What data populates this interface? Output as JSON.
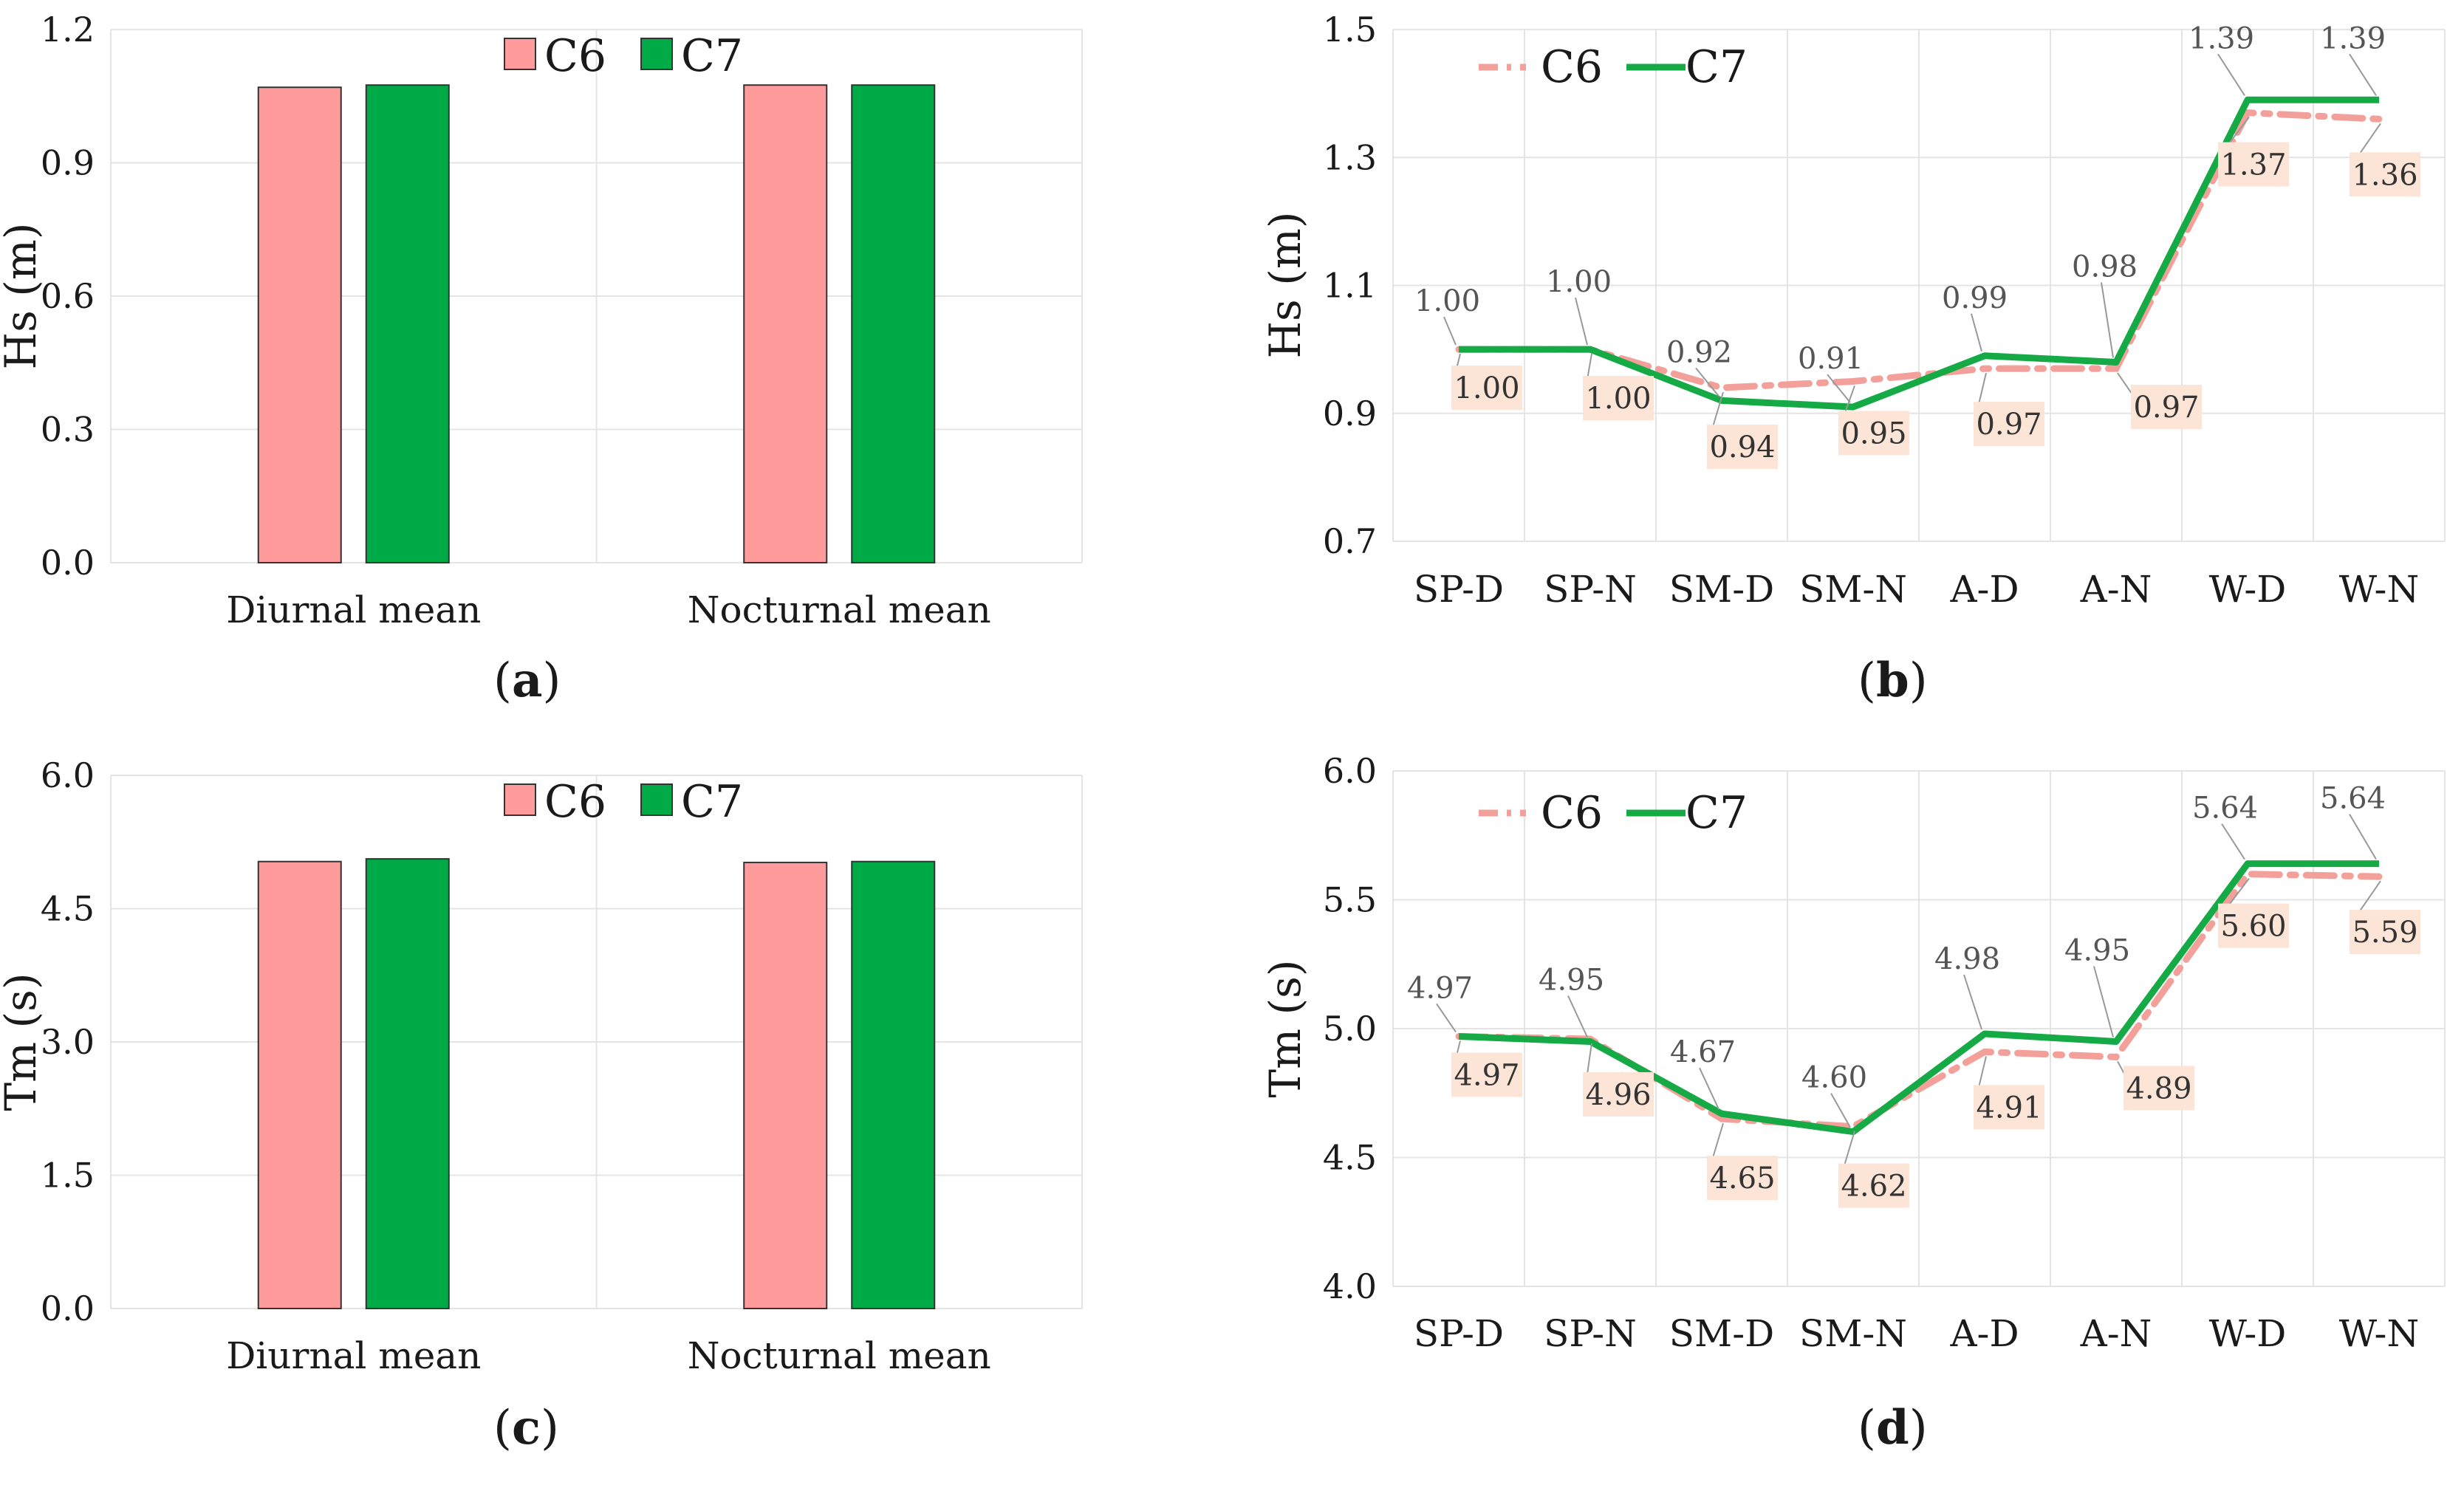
{
  "colors": {
    "c6_bar": "#FF9B9B",
    "c7_bar": "#00AA47",
    "c6_line": "#F4A09A",
    "c7_line": "#15AA45",
    "c6_label_bg": "#FCE4D6",
    "grid": "#E4E4E4"
  },
  "chart_data": [
    {
      "id": "a",
      "type": "bar",
      "panel_label": "(a)",
      "panel_letter": "a",
      "categories": [
        "Diurnal mean",
        "Nocturnal mean"
      ],
      "series": [
        {
          "name": "C6",
          "values": [
            1.07,
            1.075
          ]
        },
        {
          "name": "C7",
          "values": [
            1.075,
            1.075
          ]
        }
      ],
      "ylabel": "Hs (m)",
      "xlabel": "",
      "ylim": [
        0,
        1.2
      ],
      "yticks": [
        "0.0",
        "0.3",
        "0.6",
        "0.9",
        "1.2"
      ],
      "legend": "top-center",
      "grid": true
    },
    {
      "id": "b",
      "type": "line",
      "panel_label": "(b)",
      "panel_letter": "b",
      "categories": [
        "SP-D",
        "SP-N",
        "SM-D",
        "SM-N",
        "A-D",
        "A-N",
        "W-D",
        "W-N"
      ],
      "series": [
        {
          "name": "C6",
          "values": [
            1.0,
            1.0,
            0.94,
            0.95,
            0.97,
            0.97,
            1.37,
            1.36
          ],
          "labels": [
            "1.00",
            "1.00",
            "0.94",
            "0.95",
            "0.97",
            "0.97",
            "1.37",
            "1.36"
          ]
        },
        {
          "name": "C7",
          "values": [
            1.0,
            1.0,
            0.92,
            0.91,
            0.99,
            0.98,
            1.39,
            1.39
          ],
          "labels": [
            "1.00",
            "1.00",
            "0.92",
            "0.91",
            "0.99",
            "0.98",
            "1.39",
            "1.39"
          ]
        }
      ],
      "ylabel": "Hs (m)",
      "xlabel": "",
      "ylim": [
        0.7,
        1.5
      ],
      "yticks": [
        "0.7",
        "0.9",
        "1.1",
        "1.3",
        "1.5"
      ],
      "legend": "top-left",
      "grid": true
    },
    {
      "id": "c",
      "type": "bar",
      "panel_label": "(c)",
      "panel_letter": "c",
      "categories": [
        "Diurnal mean",
        "Nocturnal mean"
      ],
      "series": [
        {
          "name": "C6",
          "values": [
            5.03,
            5.02
          ]
        },
        {
          "name": "C7",
          "values": [
            5.06,
            5.03
          ]
        }
      ],
      "ylabel": "Tm (s)",
      "xlabel": "",
      "ylim": [
        0,
        6.0
      ],
      "yticks": [
        "0.0",
        "1.5",
        "3.0",
        "4.5",
        "6.0"
      ],
      "legend": "top-center",
      "grid": true
    },
    {
      "id": "d",
      "type": "line",
      "panel_label": "(d)",
      "panel_letter": "d",
      "categories": [
        "SP-D",
        "SP-N",
        "SM-D",
        "SM-N",
        "A-D",
        "A-N",
        "W-D",
        "W-N"
      ],
      "series": [
        {
          "name": "C6",
          "values": [
            4.97,
            4.96,
            4.65,
            4.62,
            4.91,
            4.89,
            5.6,
            5.59
          ],
          "labels": [
            "4.97",
            "4.96",
            "4.65",
            "4.62",
            "4.91",
            "4.89",
            "5.60",
            "5.59"
          ]
        },
        {
          "name": "C7",
          "values": [
            4.97,
            4.95,
            4.67,
            4.6,
            4.98,
            4.95,
            5.64,
            5.64
          ],
          "labels": [
            "4.97",
            "4.95",
            "4.67",
            "4.60",
            "4.98",
            "4.95",
            "5.64",
            "5.64"
          ]
        }
      ],
      "ylabel": "Tm (s)",
      "xlabel": "",
      "ylim": [
        4.0,
        6.0
      ],
      "yticks": [
        "4.0",
        "4.5",
        "5.0",
        "5.5",
        "6.0"
      ],
      "legend": "top-left",
      "grid": true
    }
  ]
}
